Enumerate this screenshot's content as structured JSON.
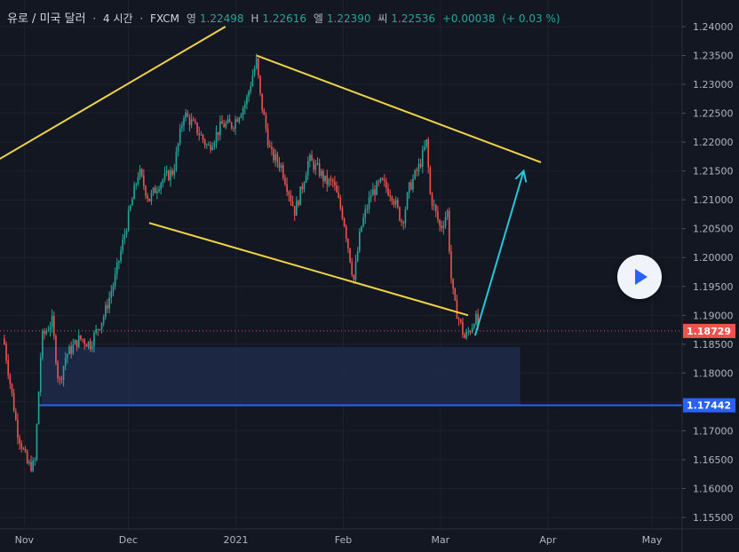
{
  "header": {
    "symbol": "유로 / 미국 달러",
    "interval": "4 시간",
    "source": "FXCM",
    "open_label": "영",
    "open": "1.22498",
    "high_label": "H",
    "high": "1.22616",
    "low_label": "엘",
    "low": "1.22390",
    "close_label": "씨",
    "close": "1.22536",
    "change": "+0.00038",
    "change_pct": "(+ 0.03 %)"
  },
  "colors": {
    "background": "#131722",
    "up": "#26a69a",
    "down": "#ef5350",
    "trendline": "#f0d346",
    "arrow": "#26c6da",
    "zone_fill": "#1e2a4a",
    "support_line": "#2962ff",
    "price_line": "#ef5350",
    "axis_text": "#b2b5be"
  },
  "chart_data": {
    "type": "candlestick",
    "x_axis_labels": [
      "Nov",
      "Dec",
      "2021",
      "Feb",
      "Mar",
      "Apr",
      "May"
    ],
    "y_axis_labels": [
      "1.24000",
      "1.23500",
      "1.23000",
      "1.22500",
      "1.22000",
      "1.21500",
      "1.21000",
      "1.20500",
      "1.20000",
      "1.19500",
      "1.19000",
      "1.18500",
      "1.18000",
      "1.17500",
      "1.17000",
      "1.16500",
      "1.16000",
      "1.15500"
    ],
    "ylim": [
      1.1525,
      1.2425
    ],
    "current_price": "1.18729",
    "support_level": "1.17442",
    "path": [
      [
        "2020-10-26",
        1.186
      ],
      [
        "2020-10-28",
        1.178
      ],
      [
        "2020-10-30",
        1.17
      ],
      [
        "2020-11-02",
        1.164
      ],
      [
        "2020-11-04",
        1.164
      ],
      [
        "2020-11-06",
        1.186
      ],
      [
        "2020-11-09",
        1.189
      ],
      [
        "2020-11-11",
        1.178
      ],
      [
        "2020-11-13",
        1.183
      ],
      [
        "2020-11-17",
        1.186
      ],
      [
        "2020-11-20",
        1.185
      ],
      [
        "2020-11-24",
        1.19
      ],
      [
        "2020-11-27",
        1.196
      ],
      [
        "2020-12-01",
        1.207
      ],
      [
        "2020-12-04",
        1.215
      ],
      [
        "2020-12-07",
        1.21
      ],
      [
        "2020-12-10",
        1.213
      ],
      [
        "2020-12-14",
        1.215
      ],
      [
        "2020-12-17",
        1.225
      ],
      [
        "2020-12-21",
        1.222
      ],
      [
        "2020-12-24",
        1.219
      ],
      [
        "2020-12-28",
        1.223
      ],
      [
        "2020-12-31",
        1.223
      ],
      [
        "2021-01-04",
        1.227
      ],
      [
        "2021-01-06",
        1.232
      ],
      [
        "2021-01-07",
        1.234
      ],
      [
        "2021-01-08",
        1.228
      ],
      [
        "2021-01-11",
        1.218
      ],
      [
        "2021-01-14",
        1.216
      ],
      [
        "2021-01-18",
        1.208
      ],
      [
        "2021-01-20",
        1.212
      ],
      [
        "2021-01-22",
        1.217
      ],
      [
        "2021-01-25",
        1.215
      ],
      [
        "2021-01-27",
        1.213
      ],
      [
        "2021-01-29",
        1.213
      ],
      [
        "2021-02-01",
        1.207
      ],
      [
        "2021-02-04",
        1.196
      ],
      [
        "2021-02-06",
        1.205
      ],
      [
        "2021-02-09",
        1.211
      ],
      [
        "2021-02-12",
        1.213
      ],
      [
        "2021-02-15",
        1.211
      ],
      [
        "2021-02-18",
        1.206
      ],
      [
        "2021-02-20",
        1.212
      ],
      [
        "2021-02-23",
        1.216
      ],
      [
        "2021-02-25",
        1.22
      ],
      [
        "2021-02-26",
        1.211
      ],
      [
        "2021-03-01",
        1.205
      ],
      [
        "2021-03-03",
        1.208
      ],
      [
        "2021-03-04",
        1.197
      ],
      [
        "2021-03-05",
        1.192
      ],
      [
        "2021-03-08",
        1.186
      ],
      [
        "2021-03-10",
        1.188
      ],
      [
        "2021-03-11",
        1.19
      ],
      [
        "2021-03-12",
        1.1873
      ]
    ],
    "trendlines": [
      {
        "from": [
          "2020-10-19",
          1.215
        ],
        "to": [
          "2020-12-29",
          1.24
        ]
      },
      {
        "from": [
          "2021-01-07",
          1.235
        ],
        "to": [
          "2021-03-30",
          1.2165
        ]
      },
      {
        "from": [
          "2020-12-07",
          1.206
        ],
        "to": [
          "2021-03-09",
          1.19
        ]
      }
    ],
    "arrow": {
      "from": [
        "2021-03-11",
        1.1865
      ],
      "to": [
        "2021-03-25",
        1.215
      ]
    },
    "zone": {
      "from": "2020-11-06",
      "to": "2021-03-24",
      "top": 1.1845,
      "bottom": 1.1744
    }
  }
}
